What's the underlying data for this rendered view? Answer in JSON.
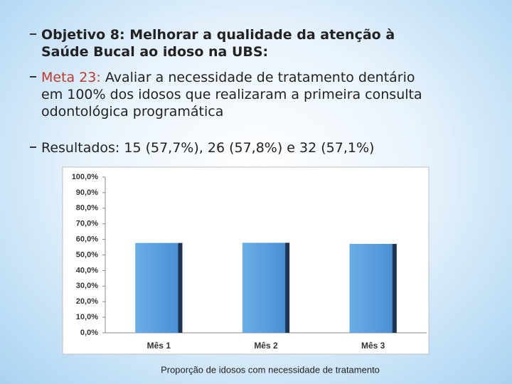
{
  "bullets": [
    {
      "text": "Objetivo 8: Melhorar a qualidade da atenção à Saúde Bucal ao idoso na UBS:"
    },
    {
      "label": "Meta 23:",
      "text": "Avaliar a necessidade de tratamento dentário em 100% dos idosos que realizaram a primeira consulta odontológica programática"
    },
    {
      "text": "Resultados: 15 (57,7%), 26 (57,8%) e 32 (57,1%)"
    }
  ],
  "chart_data": {
    "type": "bar",
    "categories": [
      "Mês 1",
      "Mês 2",
      "Mês 3"
    ],
    "values": [
      57.7,
      57.8,
      57.1
    ],
    "color": "#5b9fe0",
    "ylim": [
      0,
      100
    ],
    "yticks": [
      {
        "value": 0,
        "label": "0,0%"
      },
      {
        "value": 10,
        "label": "10,0%"
      },
      {
        "value": 20,
        "label": "20,0%"
      },
      {
        "value": 30,
        "label": "30,0%"
      },
      {
        "value": 40,
        "label": "40,0%"
      },
      {
        "value": 50,
        "label": "50,0%"
      },
      {
        "value": 60,
        "label": "60,0%"
      },
      {
        "value": 70,
        "label": "70,0%"
      },
      {
        "value": 80,
        "label": "80,0%"
      },
      {
        "value": 90,
        "label": "90,0%"
      },
      {
        "value": 100,
        "label": "100,0%"
      }
    ],
    "grid": false,
    "x_label": "Proporção de idosos com necessidade de tratamento"
  }
}
